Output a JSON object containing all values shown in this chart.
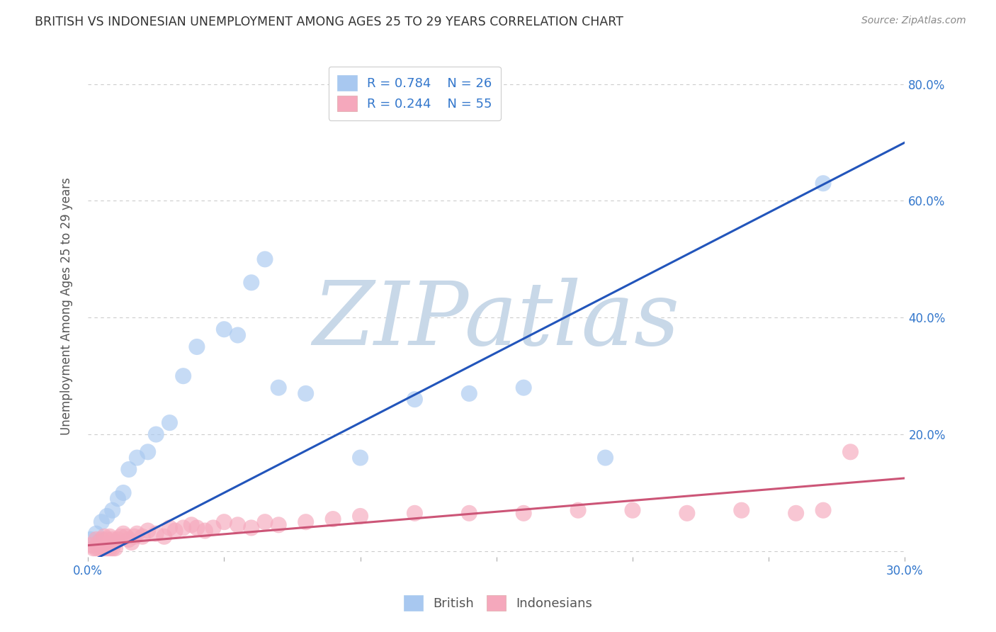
{
  "title": "BRITISH VS INDONESIAN UNEMPLOYMENT AMONG AGES 25 TO 29 YEARS CORRELATION CHART",
  "source": "Source: ZipAtlas.com",
  "ylabel": "Unemployment Among Ages 25 to 29 years",
  "xlim": [
    0.0,
    0.3
  ],
  "ylim": [
    -0.01,
    0.85
  ],
  "xticks": [
    0.0,
    0.05,
    0.1,
    0.15,
    0.2,
    0.25,
    0.3
  ],
  "yticks": [
    0.0,
    0.2,
    0.4,
    0.6,
    0.8
  ],
  "british_R": 0.784,
  "british_N": 26,
  "indonesian_R": 0.244,
  "indonesian_N": 55,
  "british_color": "#A8C8F0",
  "british_line_color": "#2255BB",
  "indonesian_color": "#F5A8BC",
  "indonesian_line_color": "#CC5577",
  "legend_label_color": "#3377CC",
  "background_color": "#FFFFFF",
  "grid_color": "#CCCCCC",
  "title_color": "#333333",
  "watermark_color": "#C8D8E8",
  "british_x": [
    0.001,
    0.003,
    0.005,
    0.007,
    0.009,
    0.011,
    0.013,
    0.015,
    0.018,
    0.022,
    0.025,
    0.03,
    0.035,
    0.04,
    0.05,
    0.055,
    0.06,
    0.065,
    0.07,
    0.08,
    0.1,
    0.12,
    0.14,
    0.16,
    0.19,
    0.27
  ],
  "british_y": [
    0.02,
    0.03,
    0.05,
    0.06,
    0.07,
    0.09,
    0.1,
    0.14,
    0.16,
    0.17,
    0.2,
    0.22,
    0.3,
    0.35,
    0.38,
    0.37,
    0.46,
    0.5,
    0.28,
    0.27,
    0.16,
    0.26,
    0.27,
    0.28,
    0.16,
    0.63
  ],
  "indonesian_x": [
    0.001,
    0.002,
    0.003,
    0.003,
    0.004,
    0.004,
    0.005,
    0.005,
    0.006,
    0.006,
    0.007,
    0.007,
    0.008,
    0.008,
    0.009,
    0.009,
    0.01,
    0.01,
    0.011,
    0.012,
    0.013,
    0.014,
    0.015,
    0.016,
    0.017,
    0.018,
    0.02,
    0.022,
    0.025,
    0.028,
    0.03,
    0.032,
    0.035,
    0.038,
    0.04,
    0.043,
    0.046,
    0.05,
    0.055,
    0.06,
    0.065,
    0.07,
    0.08,
    0.09,
    0.1,
    0.12,
    0.14,
    0.16,
    0.18,
    0.2,
    0.22,
    0.24,
    0.26,
    0.27,
    0.28
  ],
  "indonesian_y": [
    0.01,
    0.005,
    0.02,
    0.005,
    0.015,
    0.005,
    0.02,
    0.005,
    0.025,
    0.005,
    0.02,
    0.005,
    0.025,
    0.005,
    0.02,
    0.005,
    0.015,
    0.005,
    0.02,
    0.025,
    0.03,
    0.025,
    0.02,
    0.015,
    0.025,
    0.03,
    0.025,
    0.035,
    0.03,
    0.025,
    0.04,
    0.035,
    0.04,
    0.045,
    0.04,
    0.035,
    0.04,
    0.05,
    0.045,
    0.04,
    0.05,
    0.045,
    0.05,
    0.055,
    0.06,
    0.065,
    0.065,
    0.065,
    0.07,
    0.07,
    0.065,
    0.07,
    0.065,
    0.07,
    0.17
  ],
  "brit_line_x0": 0.0,
  "brit_line_y0": -0.02,
  "brit_line_x1": 0.3,
  "brit_line_y1": 0.7,
  "indo_line_x0": 0.0,
  "indo_line_y0": 0.01,
  "indo_line_x1": 0.3,
  "indo_line_y1": 0.125
}
